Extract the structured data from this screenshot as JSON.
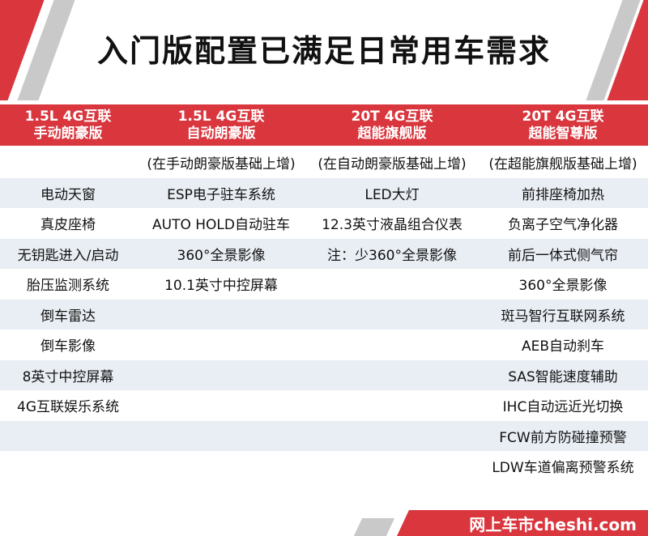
{
  "title": "入门版配置已满足日常用车需求",
  "columns": [
    {
      "line1": "1.5L 4G互联",
      "line2": "手动朗豪版"
    },
    {
      "line1": "1.5L 4G互联",
      "line2": "自动朗豪版"
    },
    {
      "line1": "20T 4G互联",
      "line2": "超能旗舰版"
    },
    {
      "line1": "20T 4G互联",
      "line2": "超能智尊版"
    }
  ],
  "rows": [
    [
      "",
      "(在手动朗豪版基础上增)",
      "(在自动朗豪版基础上增)",
      "(在超能旗舰版基础上增)"
    ],
    [
      "电动天窗",
      "ESP电子驻车系统",
      "LED大灯",
      "前排座椅加热"
    ],
    [
      "真皮座椅",
      "AUTO HOLD自动驻车",
      "12.3英寸液晶组合仪表",
      "负离子空气净化器"
    ],
    [
      "无钥匙进入/启动",
      "360°全景影像",
      "注：少360°全景影像",
      "前后一体式侧气帘"
    ],
    [
      "胎压监测系统",
      "10.1英寸中控屏幕",
      "",
      "360°全景影像"
    ],
    [
      "倒车雷达",
      "",
      "",
      "斑马智行互联网系统"
    ],
    [
      "倒车影像",
      "",
      "",
      "AEB自动刹车"
    ],
    [
      "8英寸中控屏幕",
      "",
      "",
      "SAS智能速度辅助"
    ],
    [
      "4G互联娱乐系统",
      "",
      "",
      "IHC自动远近光切换"
    ],
    [
      "",
      "",
      "",
      "FCW前方防碰撞预警"
    ],
    [
      "",
      "",
      "",
      "LDW车道偏离预警系统"
    ]
  ],
  "footer": {
    "brand": "网上车市cheshi.com"
  },
  "colors": {
    "accent": "#d9363e",
    "row_shade": "#e9eef4",
    "stripe": "#c9c9c9"
  }
}
